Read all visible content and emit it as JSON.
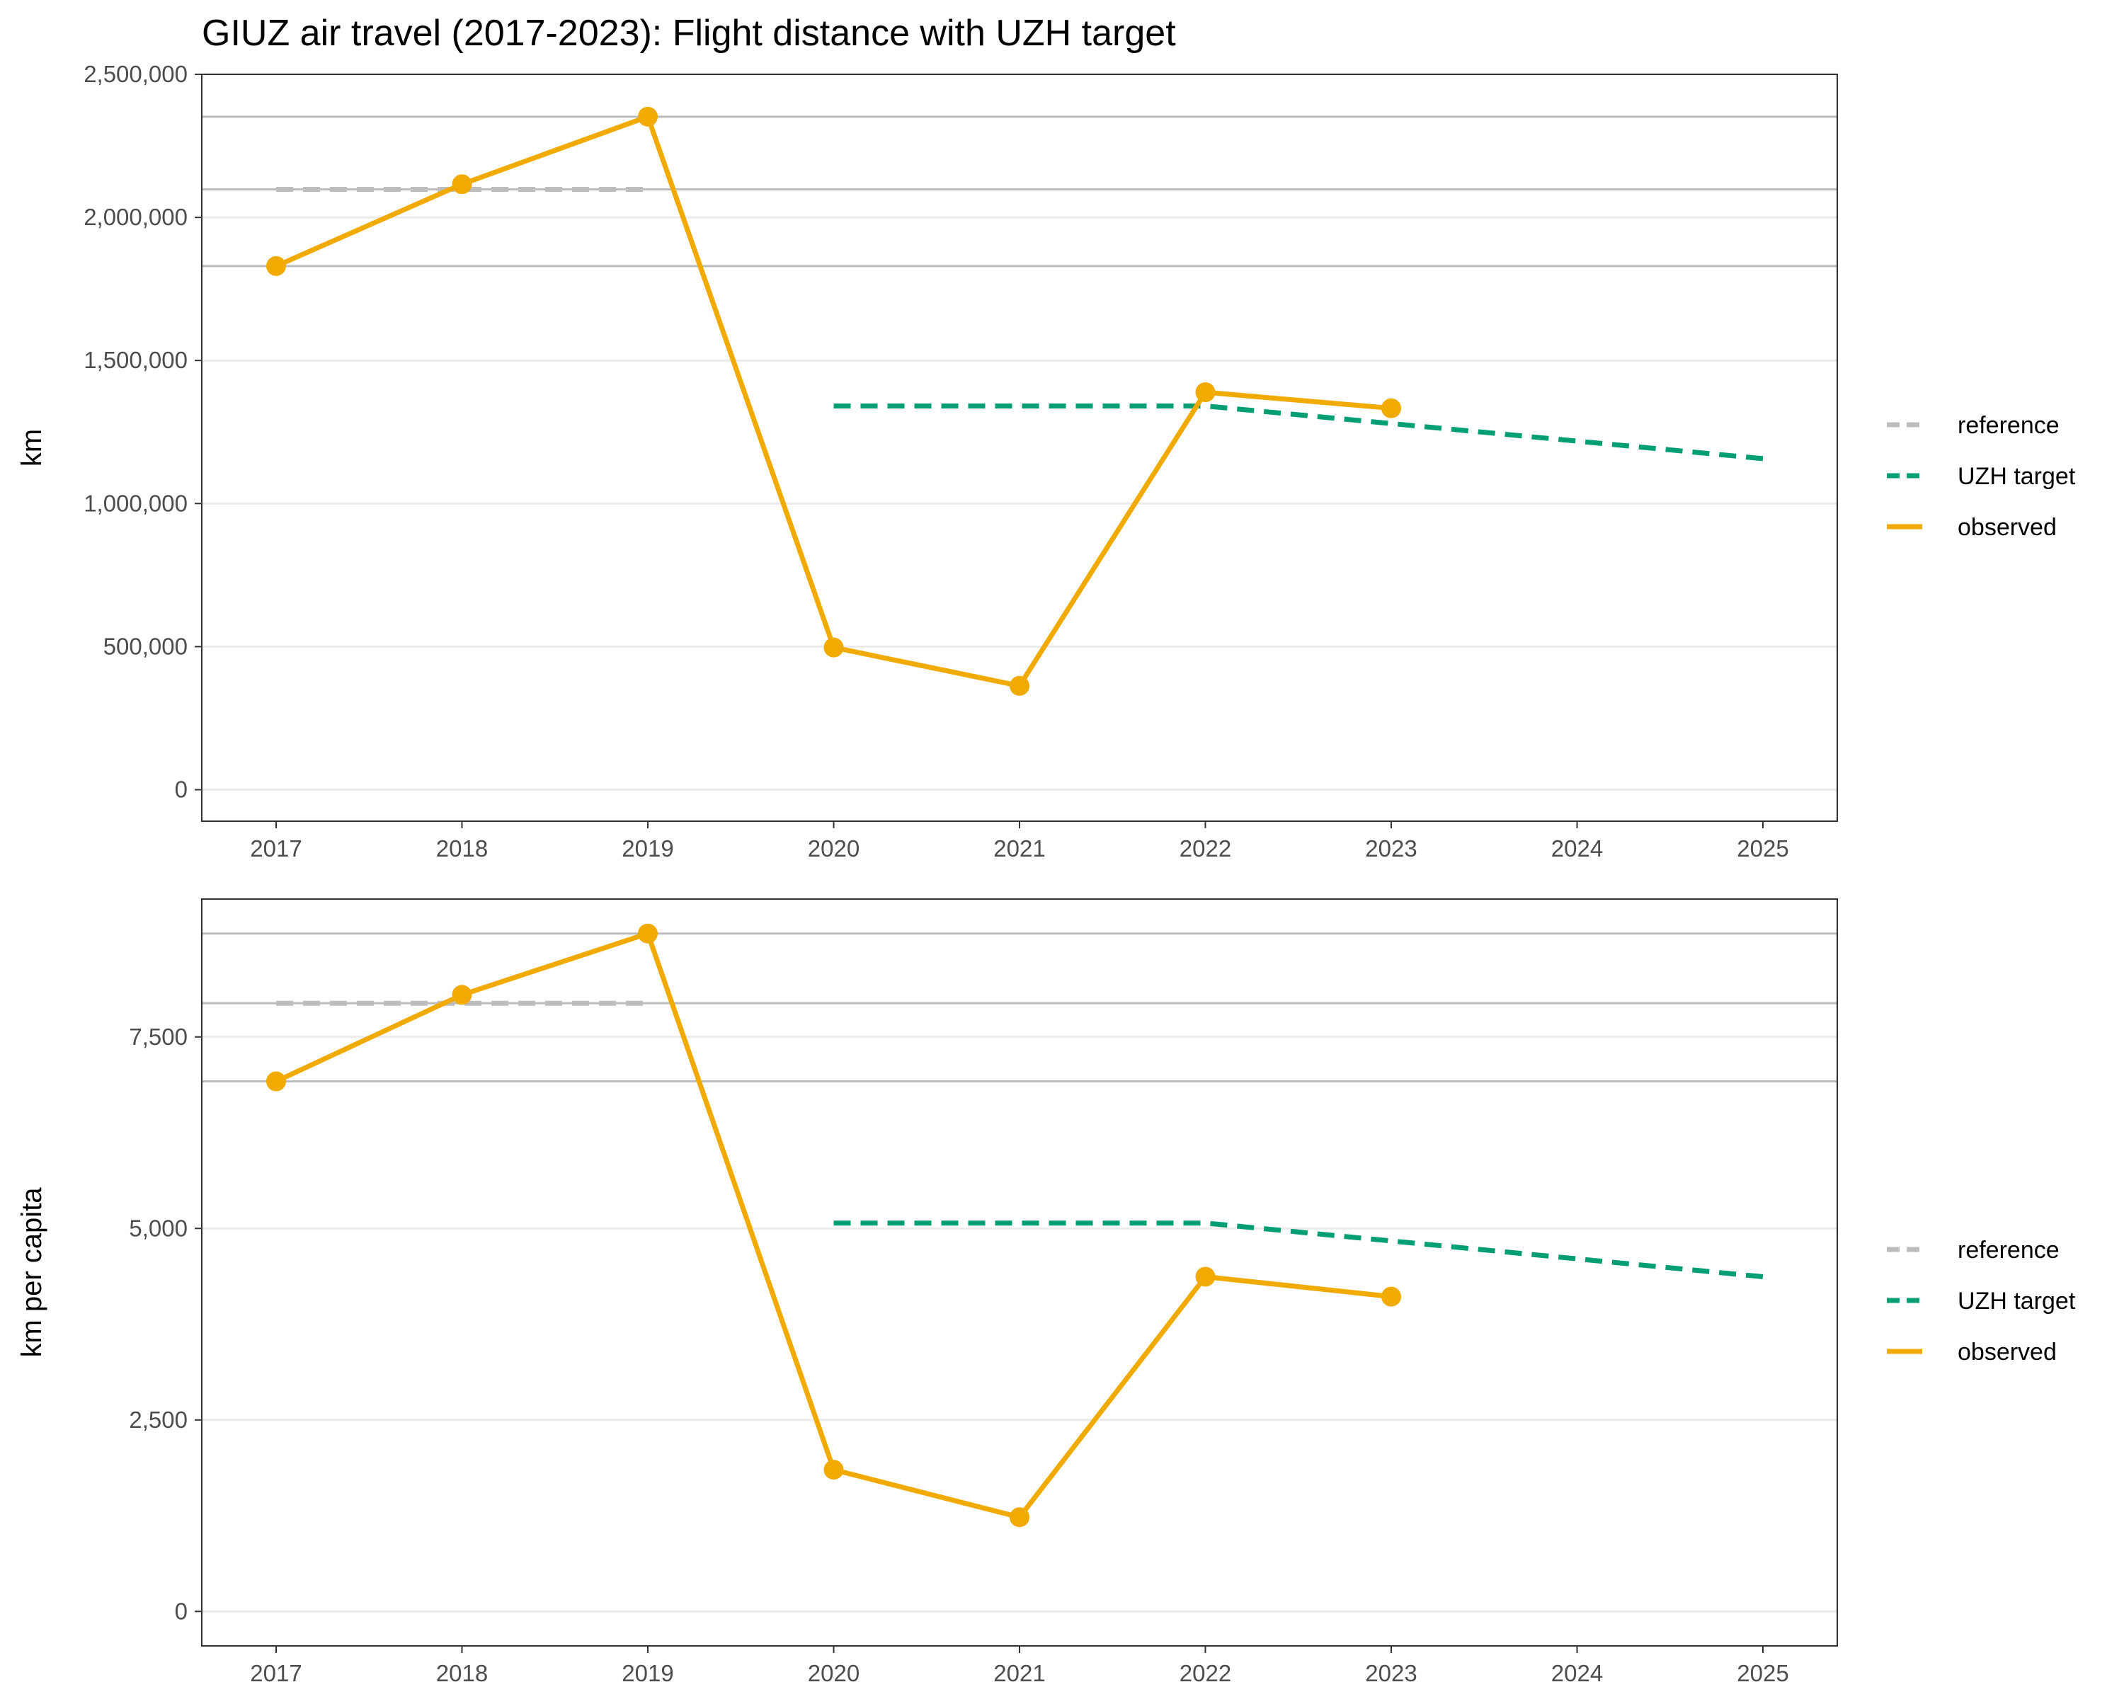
{
  "chart_data": [
    {
      "type": "line",
      "title": "GIUZ air travel (2017-2023): Flight distance with UZH target",
      "ylabel": "km",
      "xlabel": "",
      "x_ticks": [
        "2017",
        "2018",
        "2019",
        "2020",
        "2021",
        "2022",
        "2023",
        "2024",
        "2025"
      ],
      "y_ticks": [
        "0",
        "500,000",
        "1,000,000",
        "1,500,000",
        "2,000,000",
        "2,500,000"
      ],
      "ylim": [
        -110000,
        2500000
      ],
      "xlim": [
        2016.6,
        2025.4
      ],
      "grid": true,
      "legend_position": "right",
      "reference_hlines": [
        1830000,
        2098000,
        2352000
      ],
      "series": [
        {
          "name": "reference",
          "style": "dashed",
          "color": "#bdbdbd",
          "x": [
            2017,
            2019
          ],
          "y": [
            2098000,
            2098000
          ]
        },
        {
          "name": "UZH target",
          "style": "dashed",
          "color": "#009e73",
          "x": [
            2020,
            2022,
            2025
          ],
          "y": [
            1341000,
            1341000,
            1157000
          ]
        },
        {
          "name": "observed",
          "style": "solid",
          "color": "#f0aa00",
          "markers": true,
          "x": [
            2017,
            2018,
            2019,
            2020,
            2021,
            2022,
            2023
          ],
          "y": [
            1830000,
            2116000,
            2352000,
            497000,
            363000,
            1389000,
            1333000
          ]
        }
      ]
    },
    {
      "type": "line",
      "title": "",
      "ylabel": "km per capita",
      "xlabel": "",
      "x_ticks": [
        "2017",
        "2018",
        "2019",
        "2020",
        "2021",
        "2022",
        "2023",
        "2024",
        "2025"
      ],
      "y_ticks": [
        "0",
        "2,500",
        "5,000",
        "7,500"
      ],
      "ylim": [
        -450,
        9300
      ],
      "xlim": [
        2016.6,
        2025.4
      ],
      "grid": true,
      "legend_position": "right",
      "reference_hlines": [
        6920,
        7940,
        8850
      ],
      "series": [
        {
          "name": "reference",
          "style": "dashed",
          "color": "#bdbdbd",
          "x": [
            2017,
            2019
          ],
          "y": [
            7940,
            7940
          ]
        },
        {
          "name": "UZH target",
          "style": "dashed",
          "color": "#009e73",
          "x": [
            2020,
            2022,
            2025
          ],
          "y": [
            5070,
            5070,
            4370
          ]
        },
        {
          "name": "observed",
          "style": "solid",
          "color": "#f0aa00",
          "markers": true,
          "x": [
            2017,
            2018,
            2019,
            2020,
            2021,
            2022,
            2023
          ],
          "y": [
            6920,
            8050,
            8850,
            1850,
            1230,
            4370,
            4110
          ]
        }
      ]
    }
  ],
  "colors": {
    "reference": "#bdbdbd",
    "target": "#009e73",
    "observed": "#f0aa00",
    "gridline": "#ebebeb",
    "refline": "#bdbdbd",
    "panel_border": "#333333",
    "tick_text": "#4d4d4d"
  }
}
